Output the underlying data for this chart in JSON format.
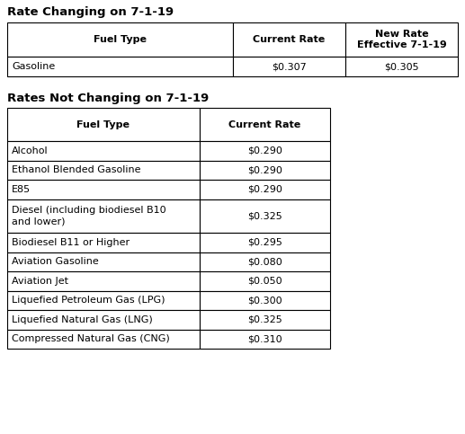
{
  "title1": "Rate Changing on 7-1-19",
  "title2": "Rates Not Changing on 7-1-19",
  "table1_headers": [
    "Fuel Type",
    "Current Rate",
    "New Rate\nEffective 7-1-19"
  ],
  "table1_data": [
    [
      "Gasoline",
      "$0.307",
      "$0.305"
    ]
  ],
  "table2_headers": [
    "Fuel Type",
    "Current Rate"
  ],
  "table2_data": [
    [
      "Alcohol",
      "$0.290"
    ],
    [
      "Ethanol Blended Gasoline",
      "$0.290"
    ],
    [
      "E85",
      "$0.290"
    ],
    [
      "Diesel (including biodiesel B10\nand lower)",
      "$0.325"
    ],
    [
      "Biodiesel B11 or Higher",
      "$0.295"
    ],
    [
      "Aviation Gasoline",
      "$0.080"
    ],
    [
      "Aviation Jet",
      "$0.050"
    ],
    [
      "Liquefied Petroleum Gas (LPG)",
      "$0.300"
    ],
    [
      "Liquefied Natural Gas (LNG)",
      "$0.325"
    ],
    [
      "Compressed Natural Gas (CNG)",
      "$0.310"
    ]
  ],
  "background_color": "#ffffff",
  "text_color": "#000000",
  "border_color": "#000000",
  "title_font_size": 9.5,
  "header_font_size": 8.0,
  "data_font_size": 8.0,
  "fig_width": 5.17,
  "fig_height": 4.83,
  "dpi": 100
}
